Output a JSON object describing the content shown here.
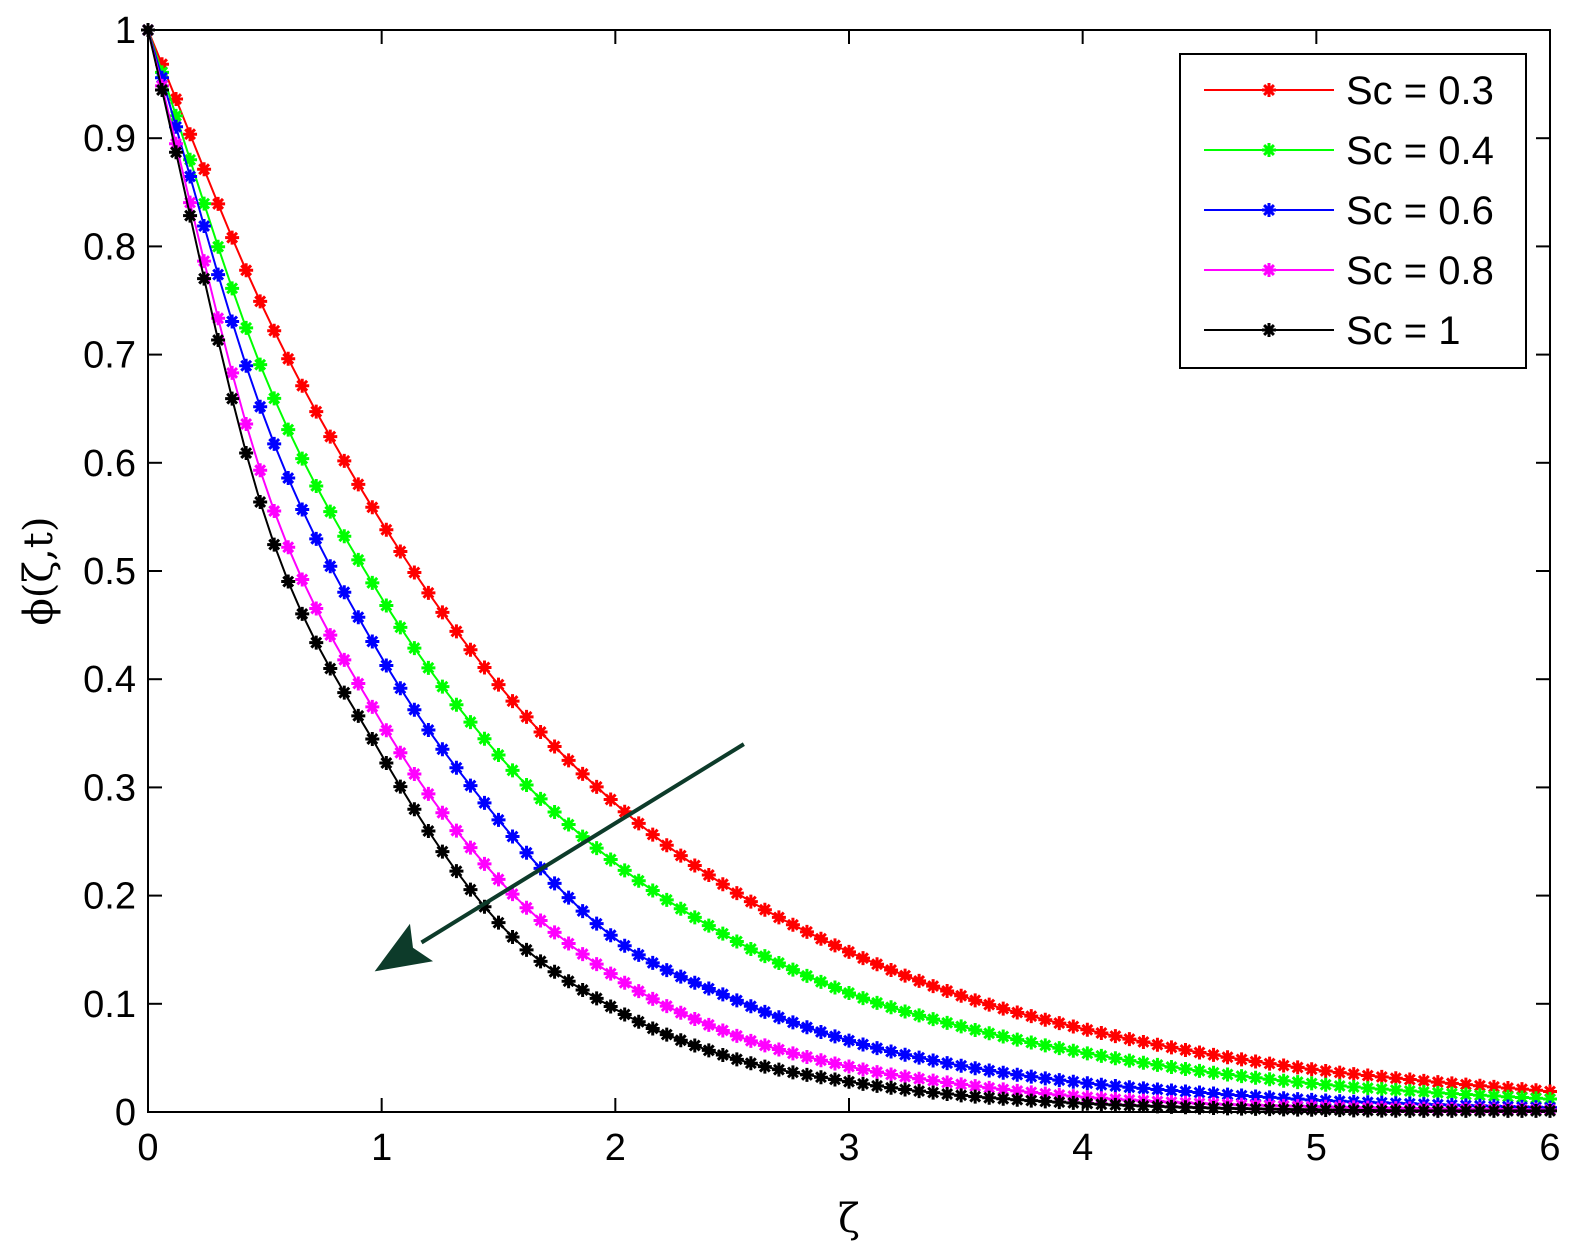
{
  "chart_data": {
    "type": "line",
    "xlabel": "ζ",
    "ylabel": "ϕ(ζ,t)",
    "xlim": [
      0,
      6
    ],
    "ylim": [
      0,
      1
    ],
    "xticks": [
      0,
      1,
      2,
      3,
      4,
      5,
      6
    ],
    "xtick_labels": [
      "0",
      "1",
      "2",
      "3",
      "4",
      "5",
      "6"
    ],
    "yticks": [
      0,
      0.1,
      0.2,
      0.3,
      0.4,
      0.5,
      0.6,
      0.7,
      0.8,
      0.9,
      1
    ],
    "ytick_labels": [
      "0",
      "0.1",
      "0.2",
      "0.3",
      "0.4",
      "0.5",
      "0.6",
      "0.7",
      "0.8",
      "0.9",
      "1"
    ],
    "grid": false,
    "legend_position": "top-right",
    "marker": "asterisk",
    "marker_spacing": 0.06,
    "x": [
      0,
      0.5,
      1,
      1.5,
      2,
      2.5,
      3,
      3.5,
      4,
      4.5,
      5,
      5.5,
      6
    ],
    "series": [
      {
        "name": "Sc = 0.3",
        "color": "#ff0000",
        "values": [
          1,
          0.74,
          0.545,
          0.395,
          0.285,
          0.205,
          0.148,
          0.106,
          0.077,
          0.055,
          0.039,
          0.028,
          0.019
        ]
      },
      {
        "name": "Sc = 0.4",
        "color": "#00ff00",
        "values": [
          1,
          0.68,
          0.475,
          0.33,
          0.23,
          0.16,
          0.11,
          0.078,
          0.055,
          0.038,
          0.026,
          0.018,
          0.012
        ]
      },
      {
        "name": "Sc = 0.6",
        "color": "#0000ff",
        "values": [
          1,
          0.64,
          0.42,
          0.27,
          0.16,
          0.105,
          0.066,
          0.042,
          0.027,
          0.018,
          0.011,
          0.007,
          0.004
        ]
      },
      {
        "name": "Sc = 0.8",
        "color": "#ff00ff",
        "values": [
          1,
          0.58,
          0.36,
          0.215,
          0.125,
          0.072,
          0.042,
          0.025,
          0.014,
          0.008,
          0.005,
          0.003,
          0.002
        ]
      },
      {
        "name": "Sc = 1",
        "color": "#000000",
        "values": [
          1,
          0.55,
          0.33,
          0.175,
          0.095,
          0.05,
          0.028,
          0.015,
          0.008,
          0.004,
          0.002,
          0.001,
          0.001
        ]
      }
    ],
    "annotations": [
      {
        "type": "arrow",
        "color": "#0d3b2a",
        "from": [
          2.55,
          0.34
        ],
        "to": [
          0.97,
          0.13
        ]
      }
    ]
  }
}
